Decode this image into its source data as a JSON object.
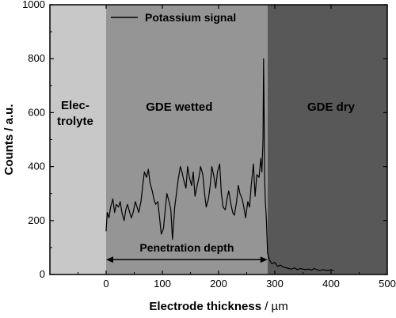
{
  "chart_data": {
    "type": "line",
    "xlabel": "Electrode thickness",
    "xlabel_unit": " / µm",
    "ylabel": "Counts / a.u.",
    "xlim": [
      -100,
      500
    ],
    "ylim": [
      0,
      1000
    ],
    "xticks": [
      0,
      100,
      200,
      300,
      400,
      500
    ],
    "yticks": [
      0,
      200,
      400,
      600,
      800,
      1000
    ],
    "regions": [
      {
        "label_lines": [
          "Elec-",
          "trolyte"
        ],
        "x_start": -100,
        "x_end": 0,
        "color": "#c8c8c8"
      },
      {
        "label_lines": [
          "GDE wetted"
        ],
        "x_start": 0,
        "x_end": 287,
        "color": "#959595"
      },
      {
        "label_lines": [
          "GDE dry"
        ],
        "x_start": 287,
        "x_end": 500,
        "color": "#585858"
      }
    ],
    "series": [
      {
        "name": "Potassium signal",
        "color": "#000000",
        "x": [
          0,
          2,
          5,
          8,
          12,
          15,
          18,
          22,
          25,
          28,
          32,
          35,
          38,
          42,
          45,
          48,
          52,
          55,
          58,
          62,
          65,
          68,
          72,
          75,
          78,
          82,
          85,
          88,
          92,
          95,
          98,
          102,
          105,
          108,
          112,
          115,
          118,
          122,
          125,
          128,
          132,
          135,
          138,
          142,
          145,
          148,
          152,
          155,
          158,
          162,
          165,
          168,
          172,
          175,
          178,
          182,
          185,
          188,
          192,
          195,
          198,
          202,
          205,
          208,
          212,
          215,
          218,
          222,
          225,
          228,
          232,
          235,
          238,
          242,
          245,
          248,
          252,
          255,
          258,
          262,
          265,
          268,
          272,
          275,
          277,
          279,
          280,
          281,
          282,
          283,
          285,
          287,
          290,
          295,
          300,
          305,
          310,
          315,
          320,
          325,
          330,
          335,
          340,
          345,
          350,
          355,
          360,
          365,
          370,
          375,
          380,
          385,
          390,
          395,
          400,
          405
        ],
        "y": [
          160,
          230,
          210,
          250,
          280,
          230,
          260,
          250,
          270,
          230,
          200,
          240,
          260,
          230,
          210,
          230,
          270,
          250,
          230,
          270,
          330,
          380,
          360,
          390,
          340,
          310,
          280,
          260,
          270,
          210,
          150,
          170,
          240,
          300,
          270,
          240,
          130,
          250,
          300,
          350,
          400,
          380,
          350,
          320,
          400,
          360,
          330,
          380,
          290,
          330,
          360,
          400,
          370,
          300,
          250,
          280,
          330,
          400,
          360,
          320,
          380,
          410,
          300,
          250,
          240,
          280,
          310,
          260,
          230,
          220,
          270,
          330,
          300,
          280,
          250,
          210,
          270,
          250,
          330,
          410,
          290,
          370,
          360,
          430,
          380,
          500,
          800,
          600,
          350,
          280,
          200,
          80,
          55,
          40,
          45,
          30,
          35,
          28,
          25,
          22,
          20,
          25,
          18,
          22,
          20,
          18,
          20,
          16,
          22,
          18,
          15,
          18,
          16,
          15,
          18,
          15
        ]
      }
    ],
    "annotations": [
      {
        "text": "Penetration depth",
        "type": "double-arrow",
        "x_start": 0,
        "x_end": 287,
        "y": 55
      }
    ],
    "legend": {
      "position": "top-center"
    },
    "grid": false
  }
}
